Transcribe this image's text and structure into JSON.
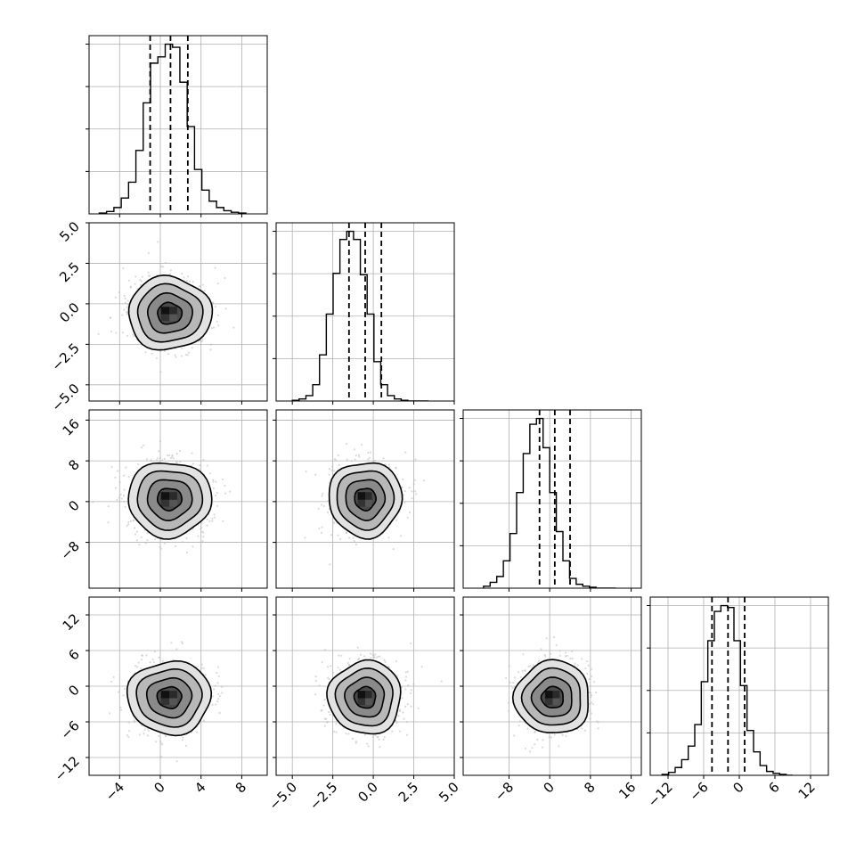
{
  "chart_data": {
    "type": "corner",
    "parameters": 4,
    "grid": true,
    "quantile_lines": "dashed black, 16/50/84 percent",
    "axes": [
      {
        "range": [
          -7,
          10.5
        ],
        "ticks": [
          -4,
          0,
          4,
          8
        ],
        "tick_labels": [
          "−4",
          "0",
          "4",
          "8"
        ],
        "quantiles": [
          -1,
          1,
          2.7
        ]
      },
      {
        "range": [
          -6,
          5
        ],
        "ticks": [
          -5,
          -2.5,
          0,
          2.5,
          5
        ],
        "tick_labels": [
          "−5.0",
          "−2.5",
          "0.0",
          "2.5",
          "5.0"
        ],
        "quantiles": [
          -1.5,
          -0.5,
          0.5
        ]
      },
      {
        "range": [
          -17,
          18
        ],
        "ticks": [
          -8,
          0,
          8,
          16
        ],
        "tick_labels": [
          "−8",
          "0",
          "8",
          "16"
        ],
        "quantiles": [
          -2,
          1,
          4
        ]
      },
      {
        "range": [
          -15,
          15
        ],
        "ticks": [
          -12,
          -6,
          0,
          6,
          12
        ],
        "tick_labels": [
          "−12",
          "−6",
          "0",
          "6",
          "12"
        ],
        "quantiles": [
          -4.6,
          -1.9,
          0.9
        ]
      }
    ],
    "histograms": [
      {
        "param": 0,
        "bin_start": -6.0,
        "bin_width": 0.72,
        "counts": [
          1,
          3,
          8,
          20,
          40,
          80,
          140,
          190,
          198,
          214,
          210,
          166,
          110,
          56,
          30,
          16,
          8,
          4,
          2,
          1
        ]
      },
      {
        "param": 1,
        "bin_start": -5.0,
        "bin_width": 0.42,
        "counts": [
          1,
          3,
          8,
          24,
          68,
          128,
          188,
          238,
          250,
          238,
          186,
          128,
          58,
          24,
          8,
          3,
          1,
          0,
          0,
          0
        ]
      },
      {
        "param": 2,
        "bin_start": -13.0,
        "bin_width": 1.3,
        "counts": [
          2,
          6,
          12,
          28,
          56,
          98,
          138,
          168,
          174,
          144,
          98,
          58,
          28,
          10,
          4,
          2,
          1,
          0,
          0,
          0
        ]
      },
      {
        "param": 3,
        "bin_start": -13.0,
        "bin_width": 1.1,
        "counts": [
          1,
          3,
          8,
          16,
          30,
          52,
          96,
          138,
          168,
          174,
          172,
          138,
          92,
          46,
          24,
          10,
          4,
          2,
          1,
          0
        ]
      }
    ],
    "pairs": [
      {
        "row": 1,
        "col": 0,
        "x_center": 0.9,
        "y_center": -0.6,
        "x_sigma": 2.0,
        "y_sigma": 1.1
      },
      {
        "row": 2,
        "col": 0,
        "x_center": 0.9,
        "y_center": 0.5,
        "x_sigma": 2.0,
        "y_sigma": 3.6
      },
      {
        "row": 2,
        "col": 1,
        "x_center": -0.5,
        "y_center": 0.5,
        "x_sigma": 1.1,
        "y_sigma": 3.6
      },
      {
        "row": 3,
        "col": 0,
        "x_center": 0.9,
        "y_center": -1.9,
        "x_sigma": 2.0,
        "y_sigma": 3.0
      },
      {
        "row": 3,
        "col": 1,
        "x_center": -0.5,
        "y_center": -1.9,
        "x_sigma": 1.1,
        "y_sigma": 3.0
      },
      {
        "row": 3,
        "col": 2,
        "x_center": 0.6,
        "y_center": -1.9,
        "x_sigma": 3.6,
        "y_sigma": 3.0
      }
    ],
    "contour_levels_sigma": [
      0.6,
      1.1,
      1.6,
      2.05
    ],
    "contour_fill_colors": [
      "#4a4a4a",
      "#8a8a8a",
      "#b8b8b8",
      "#e2e2e2"
    ],
    "colors": {
      "line": "#000000",
      "grid": "#b0b0b0",
      "points": "#bbbbbb",
      "frame": "#000000"
    }
  }
}
